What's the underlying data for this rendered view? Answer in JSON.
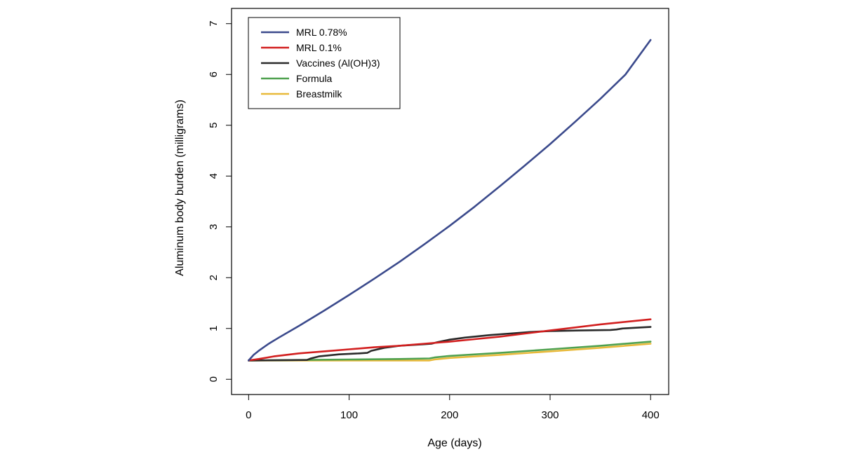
{
  "chart_data": {
    "type": "line",
    "title": "",
    "xlabel": "Age (days)",
    "ylabel": "Aluminum body burden (milligrams)",
    "xlim": [
      -17,
      418
    ],
    "ylim": [
      -0.3,
      7.3
    ],
    "xticks": [
      0,
      100,
      200,
      300,
      400
    ],
    "yticks": [
      0,
      1,
      2,
      3,
      4,
      5,
      6,
      7
    ],
    "grid": false,
    "legend_position": "top-left",
    "series": [
      {
        "name": "MRL 0.78%",
        "color": "#3b4a8c",
        "x": [
          0,
          5,
          10,
          20,
          30,
          50,
          75,
          100,
          125,
          150,
          175,
          200,
          225,
          250,
          275,
          300,
          325,
          350,
          375,
          400
        ],
        "y": [
          0.37,
          0.48,
          0.56,
          0.7,
          0.82,
          1.05,
          1.35,
          1.66,
          1.98,
          2.31,
          2.66,
          3.02,
          3.4,
          3.8,
          4.21,
          4.63,
          5.07,
          5.52,
          6.0,
          6.68
        ]
      },
      {
        "name": "MRL 0.1%",
        "color": "#d21f1f",
        "x": [
          0,
          10,
          25,
          50,
          75,
          100,
          125,
          150,
          175,
          200,
          225,
          250,
          275,
          300,
          325,
          350,
          375,
          400
        ],
        "y": [
          0.37,
          0.4,
          0.45,
          0.51,
          0.55,
          0.59,
          0.63,
          0.66,
          0.7,
          0.74,
          0.79,
          0.84,
          0.9,
          0.96,
          1.02,
          1.08,
          1.13,
          1.18
        ]
      },
      {
        "name": "Vaccines (Al(OH)3)",
        "color": "#2a2a2a",
        "x": [
          0,
          58,
          62,
          70,
          90,
          110,
          118,
          122,
          135,
          150,
          175,
          182,
          188,
          200,
          215,
          240,
          260,
          280,
          300,
          330,
          360,
          366,
          372,
          390,
          400
        ],
        "y": [
          0.37,
          0.38,
          0.41,
          0.45,
          0.49,
          0.51,
          0.52,
          0.56,
          0.62,
          0.66,
          0.69,
          0.7,
          0.73,
          0.78,
          0.82,
          0.87,
          0.9,
          0.93,
          0.95,
          0.96,
          0.97,
          0.98,
          1.0,
          1.02,
          1.03
        ]
      },
      {
        "name": "Formula",
        "color": "#4fa14f",
        "x": [
          0,
          50,
          100,
          150,
          180,
          185,
          200,
          250,
          300,
          350,
          400
        ],
        "y": [
          0.37,
          0.38,
          0.39,
          0.4,
          0.41,
          0.43,
          0.46,
          0.52,
          0.59,
          0.66,
          0.74
        ]
      },
      {
        "name": "Breastmilk",
        "color": "#e8b93a",
        "x": [
          0,
          50,
          100,
          150,
          180,
          185,
          200,
          250,
          300,
          350,
          400
        ],
        "y": [
          0.37,
          0.37,
          0.37,
          0.37,
          0.37,
          0.39,
          0.42,
          0.48,
          0.55,
          0.62,
          0.7
        ]
      }
    ]
  }
}
